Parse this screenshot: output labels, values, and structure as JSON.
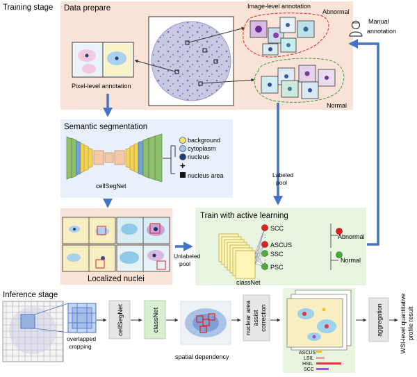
{
  "training": {
    "stage_label": "Training stage",
    "data_prepare": {
      "title": "Data prepare",
      "image_level_label": "Image-level annotation",
      "abnormal_label": "Abnormal",
      "normal_label": "Normal",
      "pixel_level_label": "Pixel-level annotation",
      "manual_annotation": [
        "Manual",
        "annotation"
      ]
    },
    "semantic_segmentation": {
      "title": "Semantic segmentation",
      "network_label": "cellSegNet",
      "legend": [
        "background",
        "cytoplasm",
        "nucleus"
      ],
      "plus": "+",
      "area_label": "nucleus area",
      "legend_colors": [
        "#f4e27a",
        "#9fc4ea",
        "#1e3e7a"
      ]
    },
    "localized_nuclei_label": "Localized nuclei",
    "labeled_pool": [
      "Labeled",
      "pool"
    ],
    "unlabeled_pool": [
      "Unlabeled",
      "pool"
    ],
    "active_learning": {
      "title": "Train with active learning",
      "network_label": "classNet",
      "abnormal_classes": [
        "SCC",
        "ASCUS"
      ],
      "normal_classes": [
        "SSC",
        "PSC"
      ],
      "abnormal_label": "Abnormal",
      "normal_label": "Normal",
      "dots": ":"
    }
  },
  "inference": {
    "stage_label": "Inference stage",
    "crop_label": [
      "overlapped",
      "cropping"
    ],
    "steps": [
      "cellSegNet",
      "classNet"
    ],
    "spatial_label": "spatial dependency",
    "correction": [
      "nuclear area",
      "assist",
      "correction"
    ],
    "aggregation": "aggregation",
    "result": [
      "WSI-level quantitative",
      "profile result"
    ],
    "bar_legend": [
      {
        "label": "ASCUS",
        "color": "#f0c419"
      },
      {
        "label": "LSIL",
        "color": "#f2a0a0"
      },
      {
        "label": "HSIL",
        "color": "#e03a3a"
      },
      {
        "label": "SCC",
        "color": "#a050d8"
      }
    ]
  },
  "colors": {
    "data_prepare_bg": "#f9e2d6",
    "segmentation_bg": "#e8f1fb",
    "nuclei_bg": "#f9e2d6",
    "active_bg": "#e6f4e0",
    "inference_step_bg": "#e6e6e6",
    "classnet_step_bg": "#d8f0d0",
    "arrow_blue": "#4472c4",
    "abnormal_red": "#e02020",
    "normal_green": "#4caa3a"
  }
}
